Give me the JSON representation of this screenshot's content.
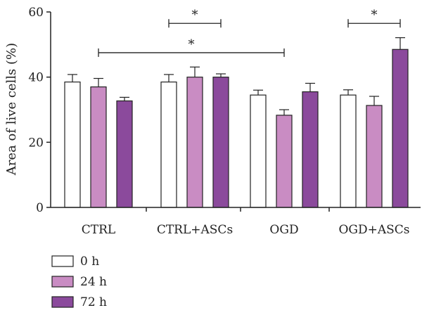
{
  "chart_data": {
    "type": "bar",
    "title": "",
    "xlabel": "",
    "ylabel": "Area of live cells (%)",
    "ylim": [
      0,
      60
    ],
    "yticks": [
      "0",
      "20",
      "40",
      "60"
    ],
    "categories": [
      "CTRL",
      "CTRL+ASCs",
      "OGD",
      "OGD+ASCs"
    ],
    "series": [
      {
        "name": "0 h",
        "color": "#ffffff",
        "values": [
          38.5,
          38.5,
          34.5,
          34.5
        ],
        "errors": [
          2.3,
          2.3,
          1.5,
          1.6
        ]
      },
      {
        "name": "24 h",
        "color": "#c98cc3",
        "values": [
          37.0,
          40.0,
          28.3,
          31.3
        ],
        "errors": [
          2.6,
          3.1,
          1.7,
          2.8
        ]
      },
      {
        "name": "72 h",
        "color": "#8b4a9c",
        "values": [
          32.7,
          40.0,
          35.5,
          48.5
        ],
        "errors": [
          1.1,
          1.0,
          2.6,
          3.6
        ]
      }
    ],
    "significance": [
      {
        "label": "*",
        "from_group": 1,
        "from_series": 0,
        "to_group": 1,
        "to_series": 2,
        "y": 56.5
      },
      {
        "label": "*",
        "from_group": 0,
        "from_series": 1,
        "to_group": 2,
        "to_series": 1,
        "y": 47.5
      },
      {
        "label": "*",
        "from_group": 3,
        "from_series": 0,
        "to_group": 3,
        "to_series": 2,
        "y": 56.5
      }
    ],
    "legend_position": "bottom-left",
    "grid": false
  }
}
